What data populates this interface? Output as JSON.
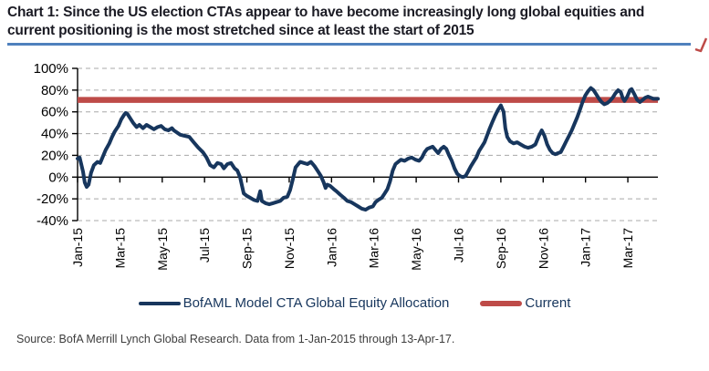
{
  "title": {
    "line1": "Chart 1: Since the US election CTAs appear to have become increasingly long global equities and",
    "line2": "current positioning is the most stretched since at least the start of 2015"
  },
  "source": "Source: BofA Merrill Lynch Global Research.  Data from 1-Jan-2015 through 13-Apr-17.",
  "legend": [
    {
      "label": "BofAML Model CTA Global Equity Allocation",
      "color": "#17365D"
    },
    {
      "label": "Current",
      "color": "#BE4B48"
    }
  ],
  "colors": {
    "series_navy": "#17365D",
    "current_red": "#BE4B48",
    "title_underline_blue": "#4F81BD",
    "gridline_gray": "#A8A8A8",
    "axis_black": "#000000"
  },
  "chart_data": {
    "type": "line",
    "title": "",
    "xlabel": "",
    "ylabel": "",
    "x_unit": "months since 1-Jan-2015",
    "xlim_months": [
      0,
      27.42
    ],
    "ylim": [
      -40,
      100
    ],
    "grid": "dashed horizontal gridlines, solid zero line",
    "legend_position": "bottom",
    "y_ticks": [
      {
        "value": 100,
        "label": "100%"
      },
      {
        "value": 80,
        "label": "80%"
      },
      {
        "value": 60,
        "label": "60%"
      },
      {
        "value": 40,
        "label": "40%"
      },
      {
        "value": 20,
        "label": "20%"
      },
      {
        "value": 0,
        "label": "0%"
      },
      {
        "value": -20,
        "label": "-20%"
      },
      {
        "value": -40,
        "label": "-40%"
      }
    ],
    "x_ticks": [
      {
        "t": 0,
        "label": "Jan-15"
      },
      {
        "t": 2,
        "label": "Mar-15"
      },
      {
        "t": 4,
        "label": "May-15"
      },
      {
        "t": 6,
        "label": "Jul-15"
      },
      {
        "t": 8,
        "label": "Sep-15"
      },
      {
        "t": 10,
        "label": "Nov-15"
      },
      {
        "t": 12,
        "label": "Jan-16"
      },
      {
        "t": 14,
        "label": "Mar-16"
      },
      {
        "t": 16,
        "label": "May-16"
      },
      {
        "t": 18,
        "label": "Jul-16"
      },
      {
        "t": 20,
        "label": "Sep-16"
      },
      {
        "t": 22,
        "label": "Nov-16"
      },
      {
        "t": 24,
        "label": "Jan-17"
      },
      {
        "t": 26,
        "label": "Mar-17"
      }
    ],
    "current_level_percent": 71,
    "series": [
      {
        "name": "BofAML Model CTA Global Equity Allocation",
        "color": "#17365D",
        "points": [
          [
            0,
            17
          ],
          [
            0.1,
            18
          ],
          [
            0.26,
            5
          ],
          [
            0.34,
            -5
          ],
          [
            0.43,
            -9
          ],
          [
            0.52,
            -7
          ],
          [
            0.64,
            4
          ],
          [
            0.77,
            11
          ],
          [
            0.94,
            14
          ],
          [
            1.07,
            13
          ],
          [
            1.2,
            19
          ],
          [
            1.33,
            25
          ],
          [
            1.5,
            31
          ],
          [
            1.63,
            37
          ],
          [
            1.76,
            42
          ],
          [
            1.93,
            47
          ],
          [
            2.06,
            53
          ],
          [
            2.19,
            57
          ],
          [
            2.27,
            59
          ],
          [
            2.36,
            58
          ],
          [
            2.49,
            54
          ],
          [
            2.62,
            50
          ],
          [
            2.79,
            46
          ],
          [
            2.92,
            48
          ],
          [
            3.09,
            45
          ],
          [
            3.26,
            48
          ],
          [
            3.43,
            46
          ],
          [
            3.61,
            44
          ],
          [
            3.78,
            46
          ],
          [
            3.95,
            47
          ],
          [
            4.12,
            44
          ],
          [
            4.29,
            43
          ],
          [
            4.46,
            45
          ],
          [
            4.55,
            43
          ],
          [
            4.85,
            39
          ],
          [
            5.06,
            38
          ],
          [
            5.28,
            37
          ],
          [
            5.49,
            32
          ],
          [
            5.71,
            27
          ],
          [
            5.92,
            23
          ],
          [
            6.09,
            18
          ],
          [
            6.27,
            11
          ],
          [
            6.44,
            9
          ],
          [
            6.61,
            13
          ],
          [
            6.78,
            12
          ],
          [
            6.91,
            8
          ],
          [
            7.08,
            12
          ],
          [
            7.25,
            13
          ],
          [
            7.42,
            8
          ],
          [
            7.55,
            6
          ],
          [
            7.68,
            0
          ],
          [
            7.77,
            -8
          ],
          [
            7.85,
            -15
          ],
          [
            7.98,
            -17
          ],
          [
            8.15,
            -19
          ],
          [
            8.33,
            -21
          ],
          [
            8.5,
            -22
          ],
          [
            8.63,
            -13
          ],
          [
            8.71,
            -22
          ],
          [
            8.88,
            -24
          ],
          [
            9.06,
            -25
          ],
          [
            9.23,
            -24
          ],
          [
            9.4,
            -23
          ],
          [
            9.57,
            -22
          ],
          [
            9.74,
            -19
          ],
          [
            9.91,
            -18
          ],
          [
            10.04,
            -12
          ],
          [
            10.17,
            -2
          ],
          [
            10.3,
            9
          ],
          [
            10.43,
            12
          ],
          [
            10.52,
            14
          ],
          [
            10.69,
            13
          ],
          [
            10.86,
            12
          ],
          [
            11.03,
            14
          ],
          [
            11.2,
            10
          ],
          [
            11.37,
            5
          ],
          [
            11.5,
            1
          ],
          [
            11.63,
            -5
          ],
          [
            11.72,
            -10
          ],
          [
            11.8,
            -7
          ],
          [
            11.93,
            -8
          ],
          [
            12.1,
            -11
          ],
          [
            12.23,
            -13
          ],
          [
            12.4,
            -16
          ],
          [
            12.58,
            -19
          ],
          [
            12.75,
            -22
          ],
          [
            12.92,
            -23
          ],
          [
            13.09,
            -25
          ],
          [
            13.26,
            -27
          ],
          [
            13.43,
            -29
          ],
          [
            13.61,
            -30
          ],
          [
            13.78,
            -28
          ],
          [
            13.95,
            -27
          ],
          [
            14.08,
            -23
          ],
          [
            14.21,
            -21
          ],
          [
            14.38,
            -19
          ],
          [
            14.51,
            -15
          ],
          [
            14.64,
            -11
          ],
          [
            14.76,
            -4
          ],
          [
            14.89,
            6
          ],
          [
            15.02,
            12
          ],
          [
            15.15,
            14
          ],
          [
            15.28,
            16
          ],
          [
            15.45,
            15
          ],
          [
            15.62,
            17
          ],
          [
            15.79,
            18
          ],
          [
            15.97,
            16
          ],
          [
            16.14,
            15
          ],
          [
            16.27,
            18
          ],
          [
            16.4,
            23
          ],
          [
            16.52,
            26
          ],
          [
            16.65,
            27
          ],
          [
            16.78,
            28
          ],
          [
            16.91,
            25
          ],
          [
            17.04,
            22
          ],
          [
            17.17,
            26
          ],
          [
            17.3,
            28
          ],
          [
            17.42,
            26
          ],
          [
            17.55,
            20
          ],
          [
            17.68,
            15
          ],
          [
            17.81,
            8
          ],
          [
            17.94,
            3
          ],
          [
            18.07,
            1
          ],
          [
            18.2,
            0
          ],
          [
            18.33,
            1
          ],
          [
            18.45,
            5
          ],
          [
            18.58,
            10
          ],
          [
            18.71,
            14
          ],
          [
            18.84,
            18
          ],
          [
            18.97,
            24
          ],
          [
            19.1,
            28
          ],
          [
            19.23,
            32
          ],
          [
            19.36,
            39
          ],
          [
            19.48,
            45
          ],
          [
            19.61,
            51
          ],
          [
            19.74,
            57
          ],
          [
            19.87,
            62
          ],
          [
            20,
            66
          ],
          [
            20.13,
            60
          ],
          [
            20.21,
            45
          ],
          [
            20.3,
            37
          ],
          [
            20.43,
            33
          ],
          [
            20.6,
            31
          ],
          [
            20.77,
            32
          ],
          [
            20.94,
            30
          ],
          [
            21.12,
            28
          ],
          [
            21.29,
            27
          ],
          [
            21.46,
            28
          ],
          [
            21.63,
            30
          ],
          [
            21.8,
            38
          ],
          [
            21.93,
            43
          ],
          [
            22.06,
            38
          ],
          [
            22.19,
            30
          ],
          [
            22.32,
            25
          ],
          [
            22.45,
            22
          ],
          [
            22.58,
            21
          ],
          [
            22.7,
            22
          ],
          [
            22.83,
            23
          ],
          [
            22.96,
            28
          ],
          [
            23.09,
            33
          ],
          [
            23.22,
            38
          ],
          [
            23.35,
            43
          ],
          [
            23.48,
            49
          ],
          [
            23.61,
            55
          ],
          [
            23.74,
            62
          ],
          [
            23.86,
            69
          ],
          [
            23.99,
            75
          ],
          [
            24.12,
            79
          ],
          [
            24.25,
            82
          ],
          [
            24.38,
            80
          ],
          [
            24.51,
            76
          ],
          [
            24.64,
            72
          ],
          [
            24.76,
            69
          ],
          [
            24.89,
            67
          ],
          [
            25.02,
            68
          ],
          [
            25.15,
            70
          ],
          [
            25.28,
            73
          ],
          [
            25.41,
            77
          ],
          [
            25.54,
            80
          ],
          [
            25.67,
            78
          ],
          [
            25.75,
            73
          ],
          [
            25.84,
            70
          ],
          [
            25.97,
            74
          ],
          [
            26.1,
            80
          ],
          [
            26.18,
            81
          ],
          [
            26.31,
            76
          ],
          [
            26.44,
            71
          ],
          [
            26.57,
            69
          ],
          [
            26.7,
            71
          ],
          [
            26.82,
            73
          ],
          [
            26.95,
            74
          ],
          [
            27.08,
            73
          ],
          [
            27.21,
            72
          ],
          [
            27.34,
            72
          ],
          [
            27.42,
            72
          ]
        ]
      },
      {
        "name": "Current",
        "type": "hline",
        "color": "#BE4B48",
        "value": 71
      }
    ]
  }
}
